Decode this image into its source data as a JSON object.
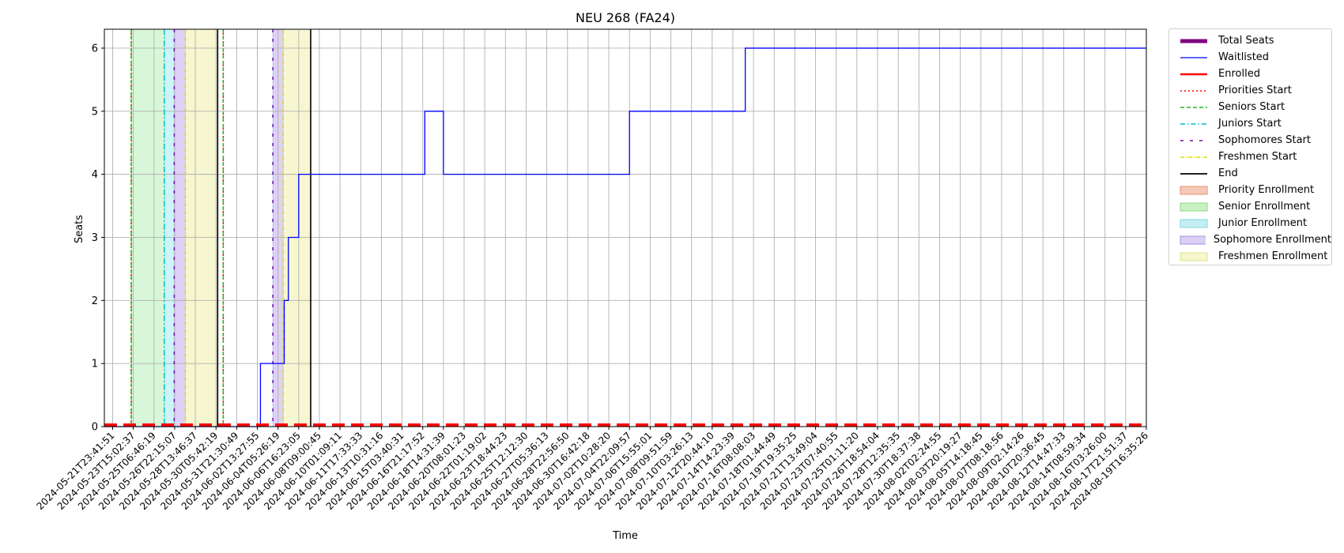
{
  "chart_data": {
    "type": "line",
    "title": "NEU 268 (FA24)",
    "xlabel": "Time",
    "ylabel": "Seats",
    "ylim": [
      0,
      6.3
    ],
    "yticks": [
      0,
      1,
      2,
      3,
      4,
      5,
      6
    ],
    "grid": true,
    "legend_position": "outside-right",
    "x_tick_labels": [
      "2024-05-21T23:41:51",
      "2024-05-23T15:02:37",
      "2024-05-25T06:46:19",
      "2024-05-26T22:15:07",
      "2024-05-28T13:46:37",
      "2024-05-30T05:42:19",
      "2024-05-31T21:30:49",
      "2024-06-02T13:27:55",
      "2024-06-04T05:26:19",
      "2024-06-06T16:23:05",
      "2024-06-08T09:00:45",
      "2024-06-10T01:09:11",
      "2024-06-11T17:33:33",
      "2024-06-13T10:31:16",
      "2024-06-15T03:40:31",
      "2024-06-16T21:17:52",
      "2024-06-18T14:31:39",
      "2024-06-20T08:01:23",
      "2024-06-22T01:19:02",
      "2024-06-23T18:44:23",
      "2024-06-25T12:12:30",
      "2024-06-27T05:36:13",
      "2024-06-28T22:56:50",
      "2024-06-30T16:42:18",
      "2024-07-02T10:28:20",
      "2024-07-04T22:09:57",
      "2024-07-06T15:55:01",
      "2024-07-08T09:51:59",
      "2024-07-10T03:26:13",
      "2024-07-12T20:44:10",
      "2024-07-14T14:23:39",
      "2024-07-16T08:08:03",
      "2024-07-18T01:44:49",
      "2024-07-19T19:35:25",
      "2024-07-21T13:49:04",
      "2024-07-23T07:40:55",
      "2024-07-25T01:11:20",
      "2024-07-26T18:54:04",
      "2024-07-28T12:35:35",
      "2024-07-30T18:37:38",
      "2024-08-02T02:24:55",
      "2024-08-03T20:19:27",
      "2024-08-05T14:18:45",
      "2024-08-07T08:18:56",
      "2024-08-09T02:14:26",
      "2024-08-10T20:36:45",
      "2024-08-12T14:47:33",
      "2024-08-14T08:59:34",
      "2024-08-16T03:26:00",
      "2024-08-17T21:51:37",
      "2024-08-19T16:35:26"
    ],
    "x_index_range": [
      -0.4,
      50.0
    ],
    "series": [
      {
        "name": "Total Seats",
        "color": "#800080",
        "style": "dashed-thick",
        "steps": [
          [
            -0.4,
            0
          ],
          [
            50.0,
            0
          ]
        ]
      },
      {
        "name": "Waitlisted",
        "color": "#0000ff",
        "style": "solid",
        "steps": [
          [
            -0.4,
            0
          ],
          [
            7.15,
            1
          ],
          [
            8.3,
            2
          ],
          [
            8.5,
            3
          ],
          [
            9.0,
            4
          ],
          [
            15.1,
            5
          ],
          [
            16.0,
            4
          ],
          [
            25.0,
            5
          ],
          [
            30.6,
            6
          ],
          [
            50.0,
            6
          ]
        ]
      },
      {
        "name": "Enrolled",
        "color": "#ff0000",
        "style": "dashed-thick",
        "steps": [
          [
            -0.4,
            0
          ],
          [
            50.0,
            0
          ]
        ]
      }
    ],
    "vertical_lines": [
      {
        "name": "Priorities Start",
        "color": "#ff0000",
        "style": "dotted",
        "x": [
          0.9,
          5.35
        ]
      },
      {
        "name": "Seniors Start",
        "color": "#22bb22",
        "style": "dashed",
        "x": [
          0.9,
          5.35
        ]
      },
      {
        "name": "Juniors Start",
        "color": "#00bfbf",
        "style": "dashdot",
        "x": [
          2.5
        ]
      },
      {
        "name": "Sophomores Start",
        "color": "#6a0dad",
        "style": "loosedash",
        "x": [
          2.98,
          7.75
        ]
      },
      {
        "name": "Freshmen Start",
        "color": "#dddd00",
        "style": "dashdot-fine",
        "x": [
          3.52,
          8.25
        ]
      },
      {
        "name": "End",
        "color": "#000000",
        "style": "solid",
        "x": [
          5.08,
          9.58
        ]
      }
    ],
    "shaded_regions": [
      {
        "name": "Senior Enrollment",
        "color": "#90e890",
        "alpha": 0.35,
        "x": [
          0.9,
          2.5
        ]
      },
      {
        "name": "Junior Enrollment",
        "color": "#90e6ee",
        "alpha": 0.45,
        "x": [
          2.5,
          2.98
        ]
      },
      {
        "name": "Sophomore Enrollment",
        "color": "#b49ae8",
        "alpha": 0.45,
        "x": [
          2.98,
          3.52
        ]
      },
      {
        "name": "Freshmen Enrollment",
        "color": "#ecec9a",
        "alpha": 0.45,
        "x": [
          3.52,
          5.08
        ]
      },
      {
        "name": "Sophomore Enrollment",
        "color": "#b49ae8",
        "alpha": 0.45,
        "x": [
          7.75,
          8.25
        ]
      },
      {
        "name": "Freshmen Enrollment",
        "color": "#ecec9a",
        "alpha": 0.45,
        "x": [
          8.25,
          9.58
        ]
      }
    ],
    "legend": [
      {
        "label": "Total Seats",
        "kind": "line",
        "color": "#800080",
        "dash": "",
        "width": 5
      },
      {
        "label": "Waitlisted",
        "kind": "line",
        "color": "#0000ff",
        "dash": "",
        "width": 1.3
      },
      {
        "label": "Enrolled",
        "kind": "line",
        "color": "#ff0000",
        "dash": "",
        "width": 2.5
      },
      {
        "label": "Priorities Start",
        "kind": "line",
        "color": "#ff0000",
        "dash": "2,3",
        "width": 1.5
      },
      {
        "label": "Seniors Start",
        "kind": "line",
        "color": "#22bb22",
        "dash": "5,3",
        "width": 1.5
      },
      {
        "label": "Juniors Start",
        "kind": "line",
        "color": "#00bfbf",
        "dash": "6,3,1.5,3",
        "width": 1.5
      },
      {
        "label": "Sophomores Start",
        "kind": "line",
        "color": "#6a0dad",
        "dash": "4,8",
        "width": 1.5
      },
      {
        "label": "Freshmen Start",
        "kind": "line",
        "color": "#dddd00",
        "dash": "5,2,1,2",
        "width": 1.5
      },
      {
        "label": "End",
        "kind": "line",
        "color": "#000000",
        "dash": "",
        "width": 1.8
      },
      {
        "label": "Priority Enrollment",
        "kind": "patch",
        "color": "#f5c9b6",
        "edge": "#e2967a"
      },
      {
        "label": "Senior Enrollment",
        "kind": "patch",
        "color": "#c9f1c3",
        "edge": "#8fd887"
      },
      {
        "label": "Junior Enrollment",
        "kind": "patch",
        "color": "#c4eef3",
        "edge": "#7fd8e2"
      },
      {
        "label": "Sophomore Enrollment",
        "kind": "patch",
        "color": "#dccff5",
        "edge": "#a98fe0"
      },
      {
        "label": "Freshmen Enrollment",
        "kind": "patch",
        "color": "#f6f6cf",
        "edge": "#e0e08a"
      }
    ]
  }
}
